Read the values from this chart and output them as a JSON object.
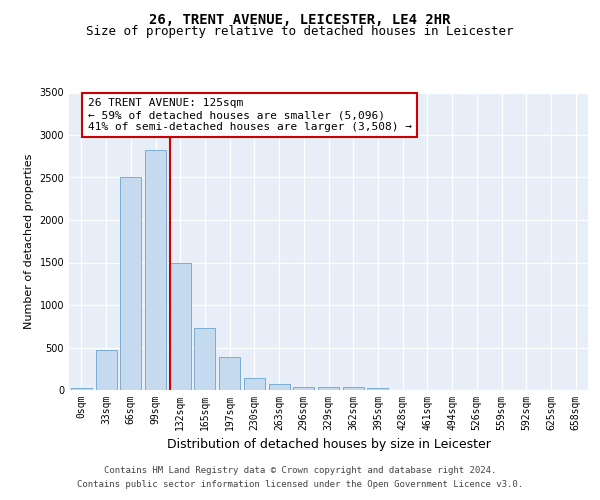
{
  "title": "26, TRENT AVENUE, LEICESTER, LE4 2HR",
  "subtitle": "Size of property relative to detached houses in Leicester",
  "xlabel": "Distribution of detached houses by size in Leicester",
  "ylabel": "Number of detached properties",
  "bar_color": "#c5d9ef",
  "bar_edgecolor": "#7aadd4",
  "bg_color": "#e8eef8",
  "grid_color": "#ffffff",
  "categories": [
    "0sqm",
    "33sqm",
    "66sqm",
    "99sqm",
    "132sqm",
    "165sqm",
    "197sqm",
    "230sqm",
    "263sqm",
    "296sqm",
    "329sqm",
    "362sqm",
    "395sqm",
    "428sqm",
    "461sqm",
    "494sqm",
    "526sqm",
    "559sqm",
    "592sqm",
    "625sqm",
    "658sqm"
  ],
  "values": [
    20,
    470,
    2500,
    2820,
    1500,
    730,
    390,
    145,
    75,
    40,
    40,
    30,
    20,
    0,
    0,
    0,
    0,
    0,
    0,
    0,
    0
  ],
  "ylim": [
    0,
    3500
  ],
  "yticks": [
    0,
    500,
    1000,
    1500,
    2000,
    2500,
    3000,
    3500
  ],
  "red_line_x": 3.58,
  "annotation_text": "26 TRENT AVENUE: 125sqm\n← 59% of detached houses are smaller (5,096)\n41% of semi-detached houses are larger (3,508) →",
  "annotation_box_color": "#ffffff",
  "annotation_box_edgecolor": "#cc0000",
  "red_line_color": "#cc0000",
  "footer_line1": "Contains HM Land Registry data © Crown copyright and database right 2024.",
  "footer_line2": "Contains public sector information licensed under the Open Government Licence v3.0.",
  "title_fontsize": 10,
  "subtitle_fontsize": 9,
  "xlabel_fontsize": 9,
  "ylabel_fontsize": 8,
  "annotation_fontsize": 8,
  "tick_fontsize": 7,
  "footer_fontsize": 6.5
}
